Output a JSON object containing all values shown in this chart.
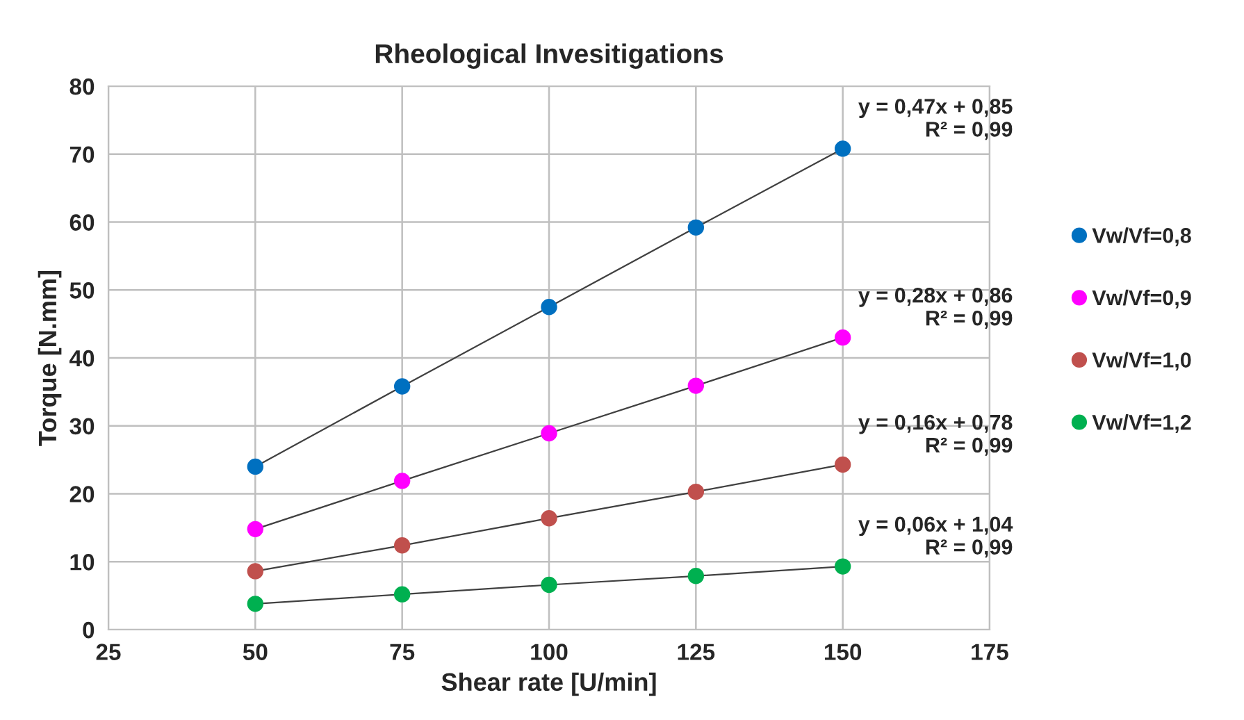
{
  "chart_data": {
    "type": "line",
    "title": "Rheological Invesitigations",
    "xlabel": "Shear rate [U/min]",
    "ylabel": "Torque [N.mm]",
    "x": [
      50,
      75,
      100,
      125,
      150
    ],
    "series": [
      {
        "name": "Vw/Vf=0,8",
        "color": "#0070c0",
        "values": [
          24,
          35.8,
          47.5,
          59.2,
          70.8
        ]
      },
      {
        "name": "Vw/Vf=0,9",
        "color": "#ff00ff",
        "values": [
          14.8,
          21.9,
          28.9,
          35.9,
          43
        ]
      },
      {
        "name": "Vw/Vf=1,0",
        "color": "#c0504d",
        "values": [
          8.6,
          12.4,
          16.4,
          20.3,
          24.3
        ]
      },
      {
        "name": "Vw/Vf=1,2",
        "color": "#00b050",
        "values": [
          3.8,
          5.2,
          6.6,
          7.9,
          9.3
        ]
      }
    ],
    "annotations": [
      "y = 0,47x + 0,85\nR² = 0,99",
      "y = 0,28x + 0,86\nR² = 0,99",
      "y = 0,16x + 0,78\nR² = 0,99",
      "y = 0,06x + 1,04\nR² = 0,99"
    ],
    "xlim": [
      25,
      175
    ],
    "xticks": [
      25,
      50,
      75,
      100,
      125,
      150,
      175
    ],
    "ylim": [
      0,
      80
    ],
    "yticks": [
      0,
      10,
      20,
      30,
      40,
      50,
      60,
      70,
      80
    ],
    "grid": true,
    "legend": "right",
    "marker": "circle",
    "line_style": "solid"
  }
}
